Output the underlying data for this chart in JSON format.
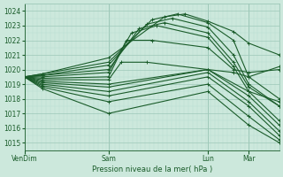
{
  "title": "",
  "xlabel": "Pression niveau de la mer( hPa )",
  "ylabel": "",
  "bg_color": "#cce8dc",
  "grid_major_color": "#9dc8b8",
  "grid_minor_color": "#b8ddd0",
  "line_color": "#1a5c2a",
  "ylim": [
    1014.5,
    1024.5
  ],
  "yticks": [
    1015,
    1016,
    1017,
    1018,
    1019,
    1020,
    1021,
    1022,
    1023,
    1024
  ],
  "xtick_labels": [
    "VenDim",
    "Sam",
    "Lun",
    "Mar"
  ],
  "xtick_pos": [
    0.0,
    0.33,
    0.72,
    0.88
  ],
  "vline_pos": [
    0.0,
    0.33,
    0.72,
    0.88
  ],
  "lines": [
    {
      "x": [
        0.0,
        0.07,
        0.33,
        0.55,
        0.63,
        0.72,
        0.82,
        0.88,
        1.0
      ],
      "y": [
        1019.5,
        1019.7,
        1020.8,
        1023.6,
        1023.8,
        1023.3,
        1022.6,
        1021.8,
        1021.0
      ]
    },
    {
      "x": [
        0.0,
        0.07,
        0.33,
        0.5,
        0.6,
        0.72,
        0.82,
        0.88,
        1.0
      ],
      "y": [
        1019.5,
        1019.7,
        1020.5,
        1023.4,
        1023.8,
        1023.2,
        1022.0,
        1019.5,
        1018.0
      ]
    },
    {
      "x": [
        0.0,
        0.07,
        0.33,
        0.48,
        0.58,
        0.72,
        0.82,
        0.88,
        1.0
      ],
      "y": [
        1019.5,
        1019.6,
        1020.3,
        1023.1,
        1023.5,
        1022.9,
        1021.0,
        1019.0,
        1017.5
      ]
    },
    {
      "x": [
        0.0,
        0.07,
        0.33,
        0.45,
        0.55,
        0.72,
        0.82,
        0.88,
        1.0
      ],
      "y": [
        1019.5,
        1019.6,
        1020.0,
        1022.8,
        1023.2,
        1022.5,
        1020.5,
        1018.8,
        1017.5
      ]
    },
    {
      "x": [
        0.0,
        0.07,
        0.33,
        0.42,
        0.52,
        0.72,
        0.82,
        0.88,
        1.0
      ],
      "y": [
        1019.5,
        1019.5,
        1019.8,
        1022.5,
        1023.0,
        1022.2,
        1020.2,
        1018.5,
        1017.8
      ]
    },
    {
      "x": [
        0.0,
        0.07,
        0.33,
        0.4,
        0.5,
        0.72,
        0.82,
        0.88,
        1.0
      ],
      "y": [
        1019.5,
        1019.4,
        1019.5,
        1022.0,
        1022.0,
        1021.5,
        1020.0,
        1019.8,
        1020.0
      ]
    },
    {
      "x": [
        0.0,
        0.07,
        0.33,
        0.38,
        0.48,
        0.72,
        0.82,
        0.88,
        1.0
      ],
      "y": [
        1019.5,
        1019.3,
        1019.3,
        1020.5,
        1020.5,
        1020.0,
        1019.8,
        1019.5,
        1020.2
      ]
    },
    {
      "x": [
        0.0,
        0.07,
        0.33,
        0.72,
        0.88,
        1.0
      ],
      "y": [
        1019.5,
        1019.2,
        1019.0,
        1020.0,
        1018.5,
        1016.5
      ]
    },
    {
      "x": [
        0.0,
        0.07,
        0.33,
        0.72,
        0.88,
        1.0
      ],
      "y": [
        1019.5,
        1019.1,
        1018.8,
        1020.0,
        1018.2,
        1016.2
      ]
    },
    {
      "x": [
        0.0,
        0.07,
        0.33,
        0.72,
        0.88,
        1.0
      ],
      "y": [
        1019.5,
        1019.0,
        1018.5,
        1019.8,
        1017.8,
        1015.8
      ]
    },
    {
      "x": [
        0.0,
        0.07,
        0.33,
        0.72,
        0.88,
        1.0
      ],
      "y": [
        1019.5,
        1018.9,
        1018.2,
        1019.5,
        1017.5,
        1015.5
      ]
    },
    {
      "x": [
        0.0,
        0.07,
        0.33,
        0.72,
        0.88,
        1.0
      ],
      "y": [
        1019.5,
        1018.8,
        1017.8,
        1019.0,
        1016.8,
        1015.2
      ]
    },
    {
      "x": [
        0.0,
        0.07,
        0.33,
        0.72,
        0.88,
        1.0
      ],
      "y": [
        1019.5,
        1018.7,
        1017.0,
        1018.5,
        1016.2,
        1015.0
      ]
    }
  ]
}
